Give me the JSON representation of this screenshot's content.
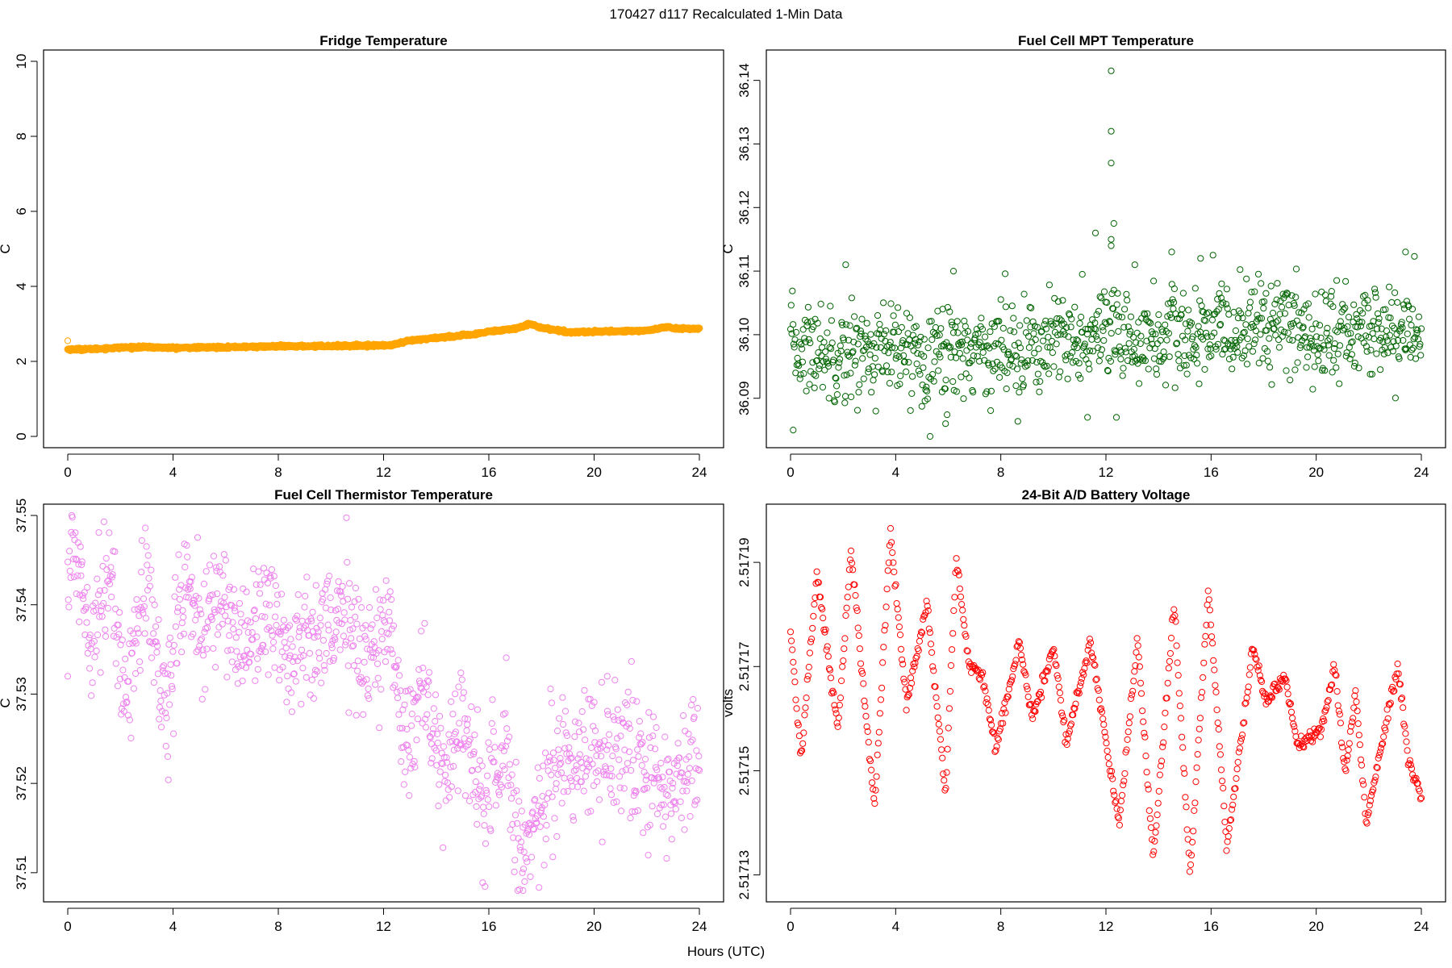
{
  "figure": {
    "main_title": "170427   d117   Recalculated 1-Min Data",
    "shared_xlabel": "Hours (UTC)"
  },
  "chart_data": [
    {
      "id": "fridge",
      "type": "scatter",
      "title": "Fridge Temperature",
      "xlabel": "",
      "ylabel": "C",
      "color": "#FFA500",
      "xlim": [
        0,
        24
      ],
      "ylim": [
        0,
        10
      ],
      "x_ticks": [
        0,
        4,
        8,
        12,
        16,
        20,
        24
      ],
      "y_ticks": [
        0,
        2,
        4,
        6,
        8,
        10
      ],
      "y_tick_labels": [
        "0",
        "2",
        "4",
        "6",
        "8",
        "10"
      ],
      "profile": [
        [
          0,
          2.32
        ],
        [
          1,
          2.33
        ],
        [
          2,
          2.37
        ],
        [
          3,
          2.38
        ],
        [
          4,
          2.36
        ],
        [
          6,
          2.38
        ],
        [
          8,
          2.4
        ],
        [
          10,
          2.41
        ],
        [
          12.3,
          2.43
        ],
        [
          13,
          2.55
        ],
        [
          14,
          2.63
        ],
        [
          15.5,
          2.72
        ],
        [
          16,
          2.8
        ],
        [
          17,
          2.87
        ],
        [
          17.5,
          3.0
        ],
        [
          18,
          2.9
        ],
        [
          19,
          2.78
        ],
        [
          20,
          2.79
        ],
        [
          22,
          2.82
        ],
        [
          22.8,
          2.92
        ],
        [
          23,
          2.88
        ],
        [
          24,
          2.87
        ]
      ],
      "noise": 0.015,
      "n_points": 1440,
      "dense": true,
      "outliers": [
        [
          0.0,
          2.55
        ]
      ]
    },
    {
      "id": "mpt",
      "type": "scatter",
      "title": "Fuel Cell MPT Temperature",
      "xlabel": "",
      "ylabel": "C",
      "color": "#006400",
      "xlim": [
        0,
        24
      ],
      "ylim": [
        36.084,
        36.143
      ],
      "x_ticks": [
        0,
        4,
        8,
        12,
        16,
        20,
        24
      ],
      "y_ticks": [
        36.09,
        36.1,
        36.11,
        36.12,
        36.13,
        36.14
      ],
      "y_tick_labels": [
        "36.09",
        "36.10",
        "36.11",
        "36.12",
        "36.13",
        "36.14"
      ],
      "profile": [
        [
          0,
          36.098
        ],
        [
          4,
          36.097
        ],
        [
          8,
          36.098
        ],
        [
          12,
          36.099
        ],
        [
          16,
          36.1
        ],
        [
          18,
          36.102
        ],
        [
          20,
          36.1
        ],
        [
          24,
          36.101
        ]
      ],
      "noise": 0.0038,
      "n_points": 1000,
      "dense": false,
      "outliers": [
        [
          0.1,
          36.085
        ],
        [
          5.9,
          36.086
        ],
        [
          11.3,
          36.087
        ],
        [
          12.4,
          36.087
        ],
        [
          11.6,
          36.116
        ],
        [
          12.2,
          36.115
        ],
        [
          12.2,
          36.1415
        ],
        [
          12.2,
          36.132
        ],
        [
          12.2,
          36.127
        ],
        [
          12.3,
          36.1175
        ],
        [
          12.2,
          36.114
        ],
        [
          2.1,
          36.111
        ],
        [
          6.2,
          36.11
        ],
        [
          11.1,
          36.1095
        ],
        [
          15.6,
          36.112
        ],
        [
          14.5,
          36.113
        ],
        [
          23.4,
          36.113
        ],
        [
          13.1,
          36.111
        ],
        [
          16.4,
          36.108
        ]
      ]
    },
    {
      "id": "thermistor",
      "type": "scatter",
      "title": "Fuel Cell Thermistor Temperature",
      "xlabel": "",
      "ylabel": "C",
      "color": "#EE82EE",
      "xlim": [
        0,
        24
      ],
      "ylim": [
        37.508,
        37.55
      ],
      "x_ticks": [
        0,
        4,
        8,
        12,
        16,
        20,
        24
      ],
      "y_ticks": [
        37.51,
        37.52,
        37.53,
        37.54,
        37.55
      ],
      "y_tick_labels": [
        "37.51",
        "37.52",
        "37.53",
        "37.54",
        "37.55"
      ],
      "profile": [
        [
          0,
          37.544
        ],
        [
          0.3,
          37.546
        ],
        [
          0.9,
          37.537
        ],
        [
          1.5,
          37.544
        ],
        [
          2.2,
          37.53
        ],
        [
          3.0,
          37.543
        ],
        [
          3.6,
          37.528
        ],
        [
          4.5,
          37.543
        ],
        [
          5.2,
          37.536
        ],
        [
          5.8,
          37.542
        ],
        [
          6.5,
          37.535
        ],
        [
          7.5,
          37.54
        ],
        [
          8.5,
          37.534
        ],
        [
          9.5,
          37.538
        ],
        [
          10.5,
          37.538
        ],
        [
          11.5,
          37.534
        ],
        [
          12.3,
          37.538
        ],
        [
          12.8,
          37.524
        ],
        [
          13.5,
          37.532
        ],
        [
          14.2,
          37.52
        ],
        [
          15.0,
          37.528
        ],
        [
          15.8,
          37.516
        ],
        [
          16.5,
          37.526
        ],
        [
          17.3,
          37.511
        ],
        [
          18.0,
          37.519
        ],
        [
          19.0,
          37.523
        ],
        [
          20.0,
          37.524
        ],
        [
          21.0,
          37.523
        ],
        [
          22.0,
          37.521
        ],
        [
          23.0,
          37.519
        ],
        [
          24.0,
          37.524
        ]
      ],
      "noise": 0.0035,
      "n_points": 1100,
      "dense": false,
      "outliers": [
        [
          3.8,
          37.523
        ],
        [
          0,
          37.532
        ],
        [
          20.5,
          37.532
        ],
        [
          17.3,
          37.508
        ]
      ]
    },
    {
      "id": "battery",
      "type": "scatter",
      "title": "24-Bit A/D Battery Voltage",
      "xlabel": "",
      "ylabel": "volts",
      "color": "#FF0000",
      "xlim": [
        0,
        24
      ],
      "ylim": [
        2.517127,
        2.517199
      ],
      "x_ticks": [
        0,
        4,
        8,
        12,
        16,
        20,
        24
      ],
      "y_ticks": [
        2.51713,
        2.51715,
        2.51717,
        2.51719
      ],
      "y_tick_labels": [
        "2.51713",
        "2.51715",
        "2.51717",
        "2.51719"
      ],
      "profile": [
        [
          0,
          2.517177
        ],
        [
          0.4,
          2.517152
        ],
        [
          1.0,
          2.517188
        ],
        [
          1.8,
          2.517158
        ],
        [
          2.3,
          2.517192
        ],
        [
          3.2,
          2.517143
        ],
        [
          3.8,
          2.517196
        ],
        [
          4.4,
          2.517163
        ],
        [
          5.2,
          2.517182
        ],
        [
          5.9,
          2.517145
        ],
        [
          6.3,
          2.517191
        ],
        [
          6.8,
          2.51717
        ],
        [
          7.3,
          2.517168
        ],
        [
          7.8,
          2.517154
        ],
        [
          8.7,
          2.517175
        ],
        [
          9.2,
          2.51716
        ],
        [
          10.0,
          2.517174
        ],
        [
          10.5,
          2.517155
        ],
        [
          11.4,
          2.517175
        ],
        [
          12.5,
          2.51714
        ],
        [
          13.2,
          2.517175
        ],
        [
          13.8,
          2.517133
        ],
        [
          14.6,
          2.517182
        ],
        [
          15.2,
          2.51713
        ],
        [
          15.9,
          2.517185
        ],
        [
          16.6,
          2.517135
        ],
        [
          17.6,
          2.517174
        ],
        [
          18.1,
          2.517163
        ],
        [
          18.8,
          2.517168
        ],
        [
          19.3,
          2.517155
        ],
        [
          20.2,
          2.517158
        ],
        [
          20.7,
          2.51717
        ],
        [
          21.1,
          2.51715
        ],
        [
          21.5,
          2.517165
        ],
        [
          21.9,
          2.51714
        ],
        [
          22.5,
          2.517155
        ],
        [
          23.1,
          2.51717
        ],
        [
          23.5,
          2.517152
        ],
        [
          24.0,
          2.517145
        ]
      ],
      "noise": 7e-07,
      "n_points": 720,
      "dense": false,
      "outliers": []
    }
  ]
}
